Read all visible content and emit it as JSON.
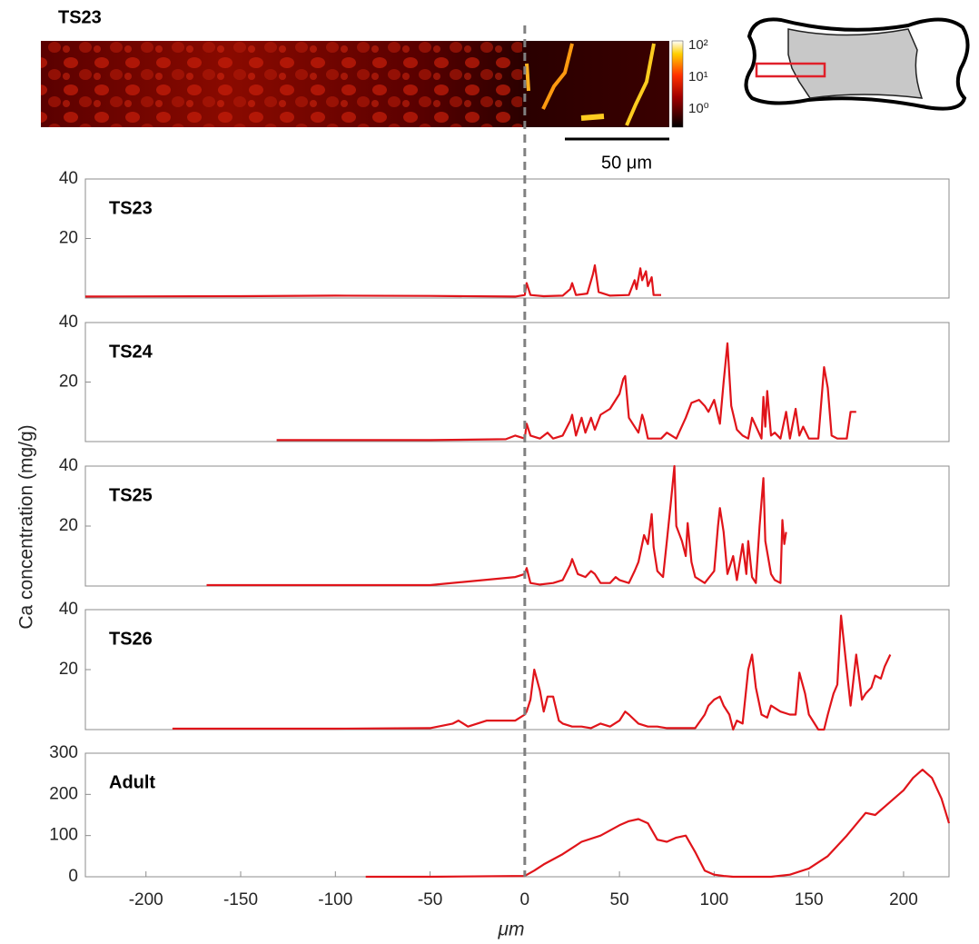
{
  "image_panel": {
    "title": "TS23",
    "scale_bar": "50 μm",
    "colorbar_ticks": [
      "10²",
      "10¹",
      "10⁰"
    ]
  },
  "shared_axes": {
    "ylabel": "Ca concentration (mg/g)",
    "xlabel": "μm"
  },
  "reference_line": {
    "x": 0,
    "style": "dashed",
    "color": "#808080"
  },
  "chart_data": [
    {
      "type": "line",
      "title": "TS23",
      "color": "#e0141a",
      "xlim": [
        -232,
        224
      ],
      "ylim": [
        0,
        40
      ],
      "yticks": [
        20,
        40
      ],
      "x": [
        -232,
        -150,
        -100,
        -50,
        -5,
        0,
        1,
        3,
        10,
        20,
        24,
        25,
        27,
        33,
        36,
        37,
        39,
        45,
        55,
        58,
        59,
        61,
        62,
        64,
        65,
        67,
        68,
        72
      ],
      "values": [
        0.5,
        0.6,
        0.8,
        0.7,
        0.5,
        1,
        5,
        1,
        0.6,
        0.8,
        3,
        5,
        1,
        1.5,
        8,
        11,
        2,
        0.8,
        1,
        6,
        3,
        10,
        6,
        9,
        4,
        7,
        1,
        1
      ]
    },
    {
      "type": "line",
      "title": "TS24",
      "color": "#e0141a",
      "xlim": [
        -232,
        224
      ],
      "ylim": [
        0,
        40
      ],
      "yticks": [
        20,
        40
      ],
      "x": [
        -131,
        -100,
        -50,
        -10,
        -5,
        0,
        1,
        3,
        8,
        12,
        15,
        20,
        24,
        25,
        27,
        30,
        32,
        35,
        37,
        40,
        45,
        50,
        52,
        53,
        55,
        60,
        62,
        63,
        65,
        68,
        72,
        75,
        80,
        85,
        88,
        92,
        95,
        97,
        100,
        103,
        105,
        107,
        109,
        112,
        115,
        118,
        120,
        125,
        126,
        127,
        128,
        130,
        132,
        135,
        138,
        140,
        143,
        145,
        147,
        150,
        155,
        158,
        160,
        162,
        165,
        170,
        172,
        175
      ],
      "values": [
        0.5,
        0.5,
        0.5,
        0.8,
        2,
        1,
        6,
        2,
        1,
        3,
        1,
        2,
        7,
        9,
        2,
        8,
        3,
        8,
        4,
        9,
        11,
        16,
        21,
        22,
        8,
        3,
        9,
        7,
        1,
        1,
        1,
        3,
        1,
        8,
        13,
        14,
        12,
        10,
        14,
        6,
        20,
        33,
        12,
        4,
        2,
        1,
        8,
        1,
        15,
        5,
        17,
        2,
        3,
        1,
        10,
        1,
        11,
        2,
        5,
        1,
        1,
        25,
        18,
        2,
        1,
        1,
        10,
        10
      ]
    },
    {
      "type": "line",
      "title": "TS25",
      "color": "#e0141a",
      "xlim": [
        -232,
        224
      ],
      "ylim": [
        0,
        40
      ],
      "yticks": [
        20,
        40
      ],
      "x": [
        -168,
        -100,
        -50,
        -5,
        0,
        1,
        3,
        8,
        15,
        20,
        24,
        25,
        28,
        32,
        35,
        37,
        40,
        45,
        48,
        50,
        55,
        58,
        60,
        63,
        65,
        67,
        68,
        70,
        73,
        75,
        77,
        79,
        80,
        83,
        85,
        86,
        88,
        90,
        95,
        100,
        102,
        103,
        105,
        107,
        110,
        112,
        115,
        117,
        118,
        120,
        122,
        124,
        126,
        127,
        130,
        132,
        135,
        136,
        137,
        138
      ],
      "values": [
        0.3,
        0.3,
        0.3,
        3,
        4,
        6,
        1,
        0.5,
        1,
        2,
        7,
        9,
        4,
        3,
        5,
        4,
        1,
        1,
        3,
        2,
        1,
        5,
        8,
        17,
        14,
        24,
        13,
        5,
        3,
        15,
        27,
        40,
        20,
        15,
        10,
        21,
        8,
        3,
        1,
        5,
        20,
        26,
        18,
        4,
        10,
        2,
        14,
        4,
        15,
        3,
        1,
        20,
        36,
        15,
        4,
        2,
        1,
        22,
        14,
        18
      ]
    },
    {
      "type": "line",
      "title": "TS26",
      "color": "#e0141a",
      "xlim": [
        -232,
        224
      ],
      "ylim": [
        0,
        40
      ],
      "yticks": [
        20,
        40
      ],
      "x": [
        -186,
        -100,
        -50,
        -38,
        -35,
        -30,
        -20,
        -10,
        -5,
        0,
        1,
        3,
        5,
        8,
        10,
        12,
        15,
        18,
        20,
        25,
        30,
        35,
        40,
        45,
        50,
        53,
        55,
        60,
        65,
        70,
        75,
        80,
        90,
        95,
        97,
        100,
        103,
        105,
        108,
        110,
        112,
        115,
        118,
        120,
        122,
        125,
        128,
        130,
        135,
        140,
        143,
        145,
        148,
        150,
        155,
        158,
        160,
        163,
        165,
        167,
        170,
        172,
        175,
        178,
        180,
        183,
        185,
        188,
        190,
        193
      ],
      "values": [
        0.3,
        0.3,
        0.5,
        2,
        3,
        1,
        3,
        3,
        3,
        5,
        6,
        10,
        20,
        13,
        6,
        11,
        11,
        3,
        2,
        1,
        1,
        0.5,
        2,
        1,
        3,
        6,
        5,
        2,
        1,
        1,
        0.5,
        0.5,
        0.5,
        5,
        8,
        10,
        11,
        8,
        5,
        0,
        3,
        2,
        20,
        25,
        14,
        5,
        4,
        8,
        6,
        5,
        5,
        19,
        12,
        5,
        0,
        0,
        5,
        12,
        15,
        38,
        20,
        8,
        25,
        10,
        12,
        14,
        18,
        17,
        21,
        25
      ]
    },
    {
      "type": "line",
      "title": "Adult",
      "color": "#e0141a",
      "xlim": [
        -232,
        224
      ],
      "ylim": [
        0,
        300
      ],
      "yticks": [
        0,
        100,
        200,
        300
      ],
      "xticks": [
        -200,
        -150,
        -100,
        -50,
        0,
        50,
        100,
        150,
        200
      ],
      "x": [
        -84,
        -50,
        0,
        5,
        10,
        20,
        30,
        40,
        50,
        55,
        60,
        65,
        70,
        75,
        80,
        85,
        90,
        95,
        100,
        105,
        110,
        120,
        130,
        140,
        150,
        160,
        170,
        180,
        185,
        190,
        200,
        205,
        210,
        215,
        220,
        224
      ],
      "values": [
        0,
        0,
        2,
        15,
        30,
        55,
        85,
        100,
        125,
        135,
        140,
        130,
        90,
        85,
        95,
        100,
        60,
        15,
        5,
        2,
        0,
        0,
        0,
        5,
        20,
        50,
        100,
        155,
        150,
        170,
        210,
        240,
        260,
        240,
        190,
        130
      ]
    }
  ]
}
